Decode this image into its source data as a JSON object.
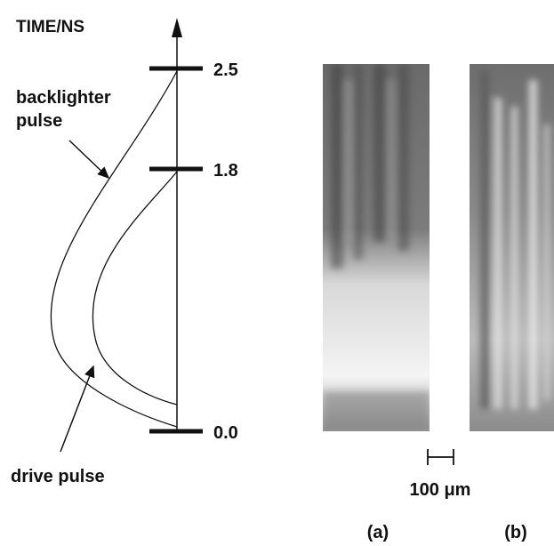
{
  "axis": {
    "label": "TIME/NS",
    "ticks": [
      "2.5",
      "1.8",
      "0.0"
    ]
  },
  "annotations": {
    "backlighter": [
      "backlighter",
      "pulse"
    ],
    "drive": "drive pulse"
  },
  "scale_bar": "100 μm",
  "panels": [
    "(a)",
    "(b)"
  ]
}
